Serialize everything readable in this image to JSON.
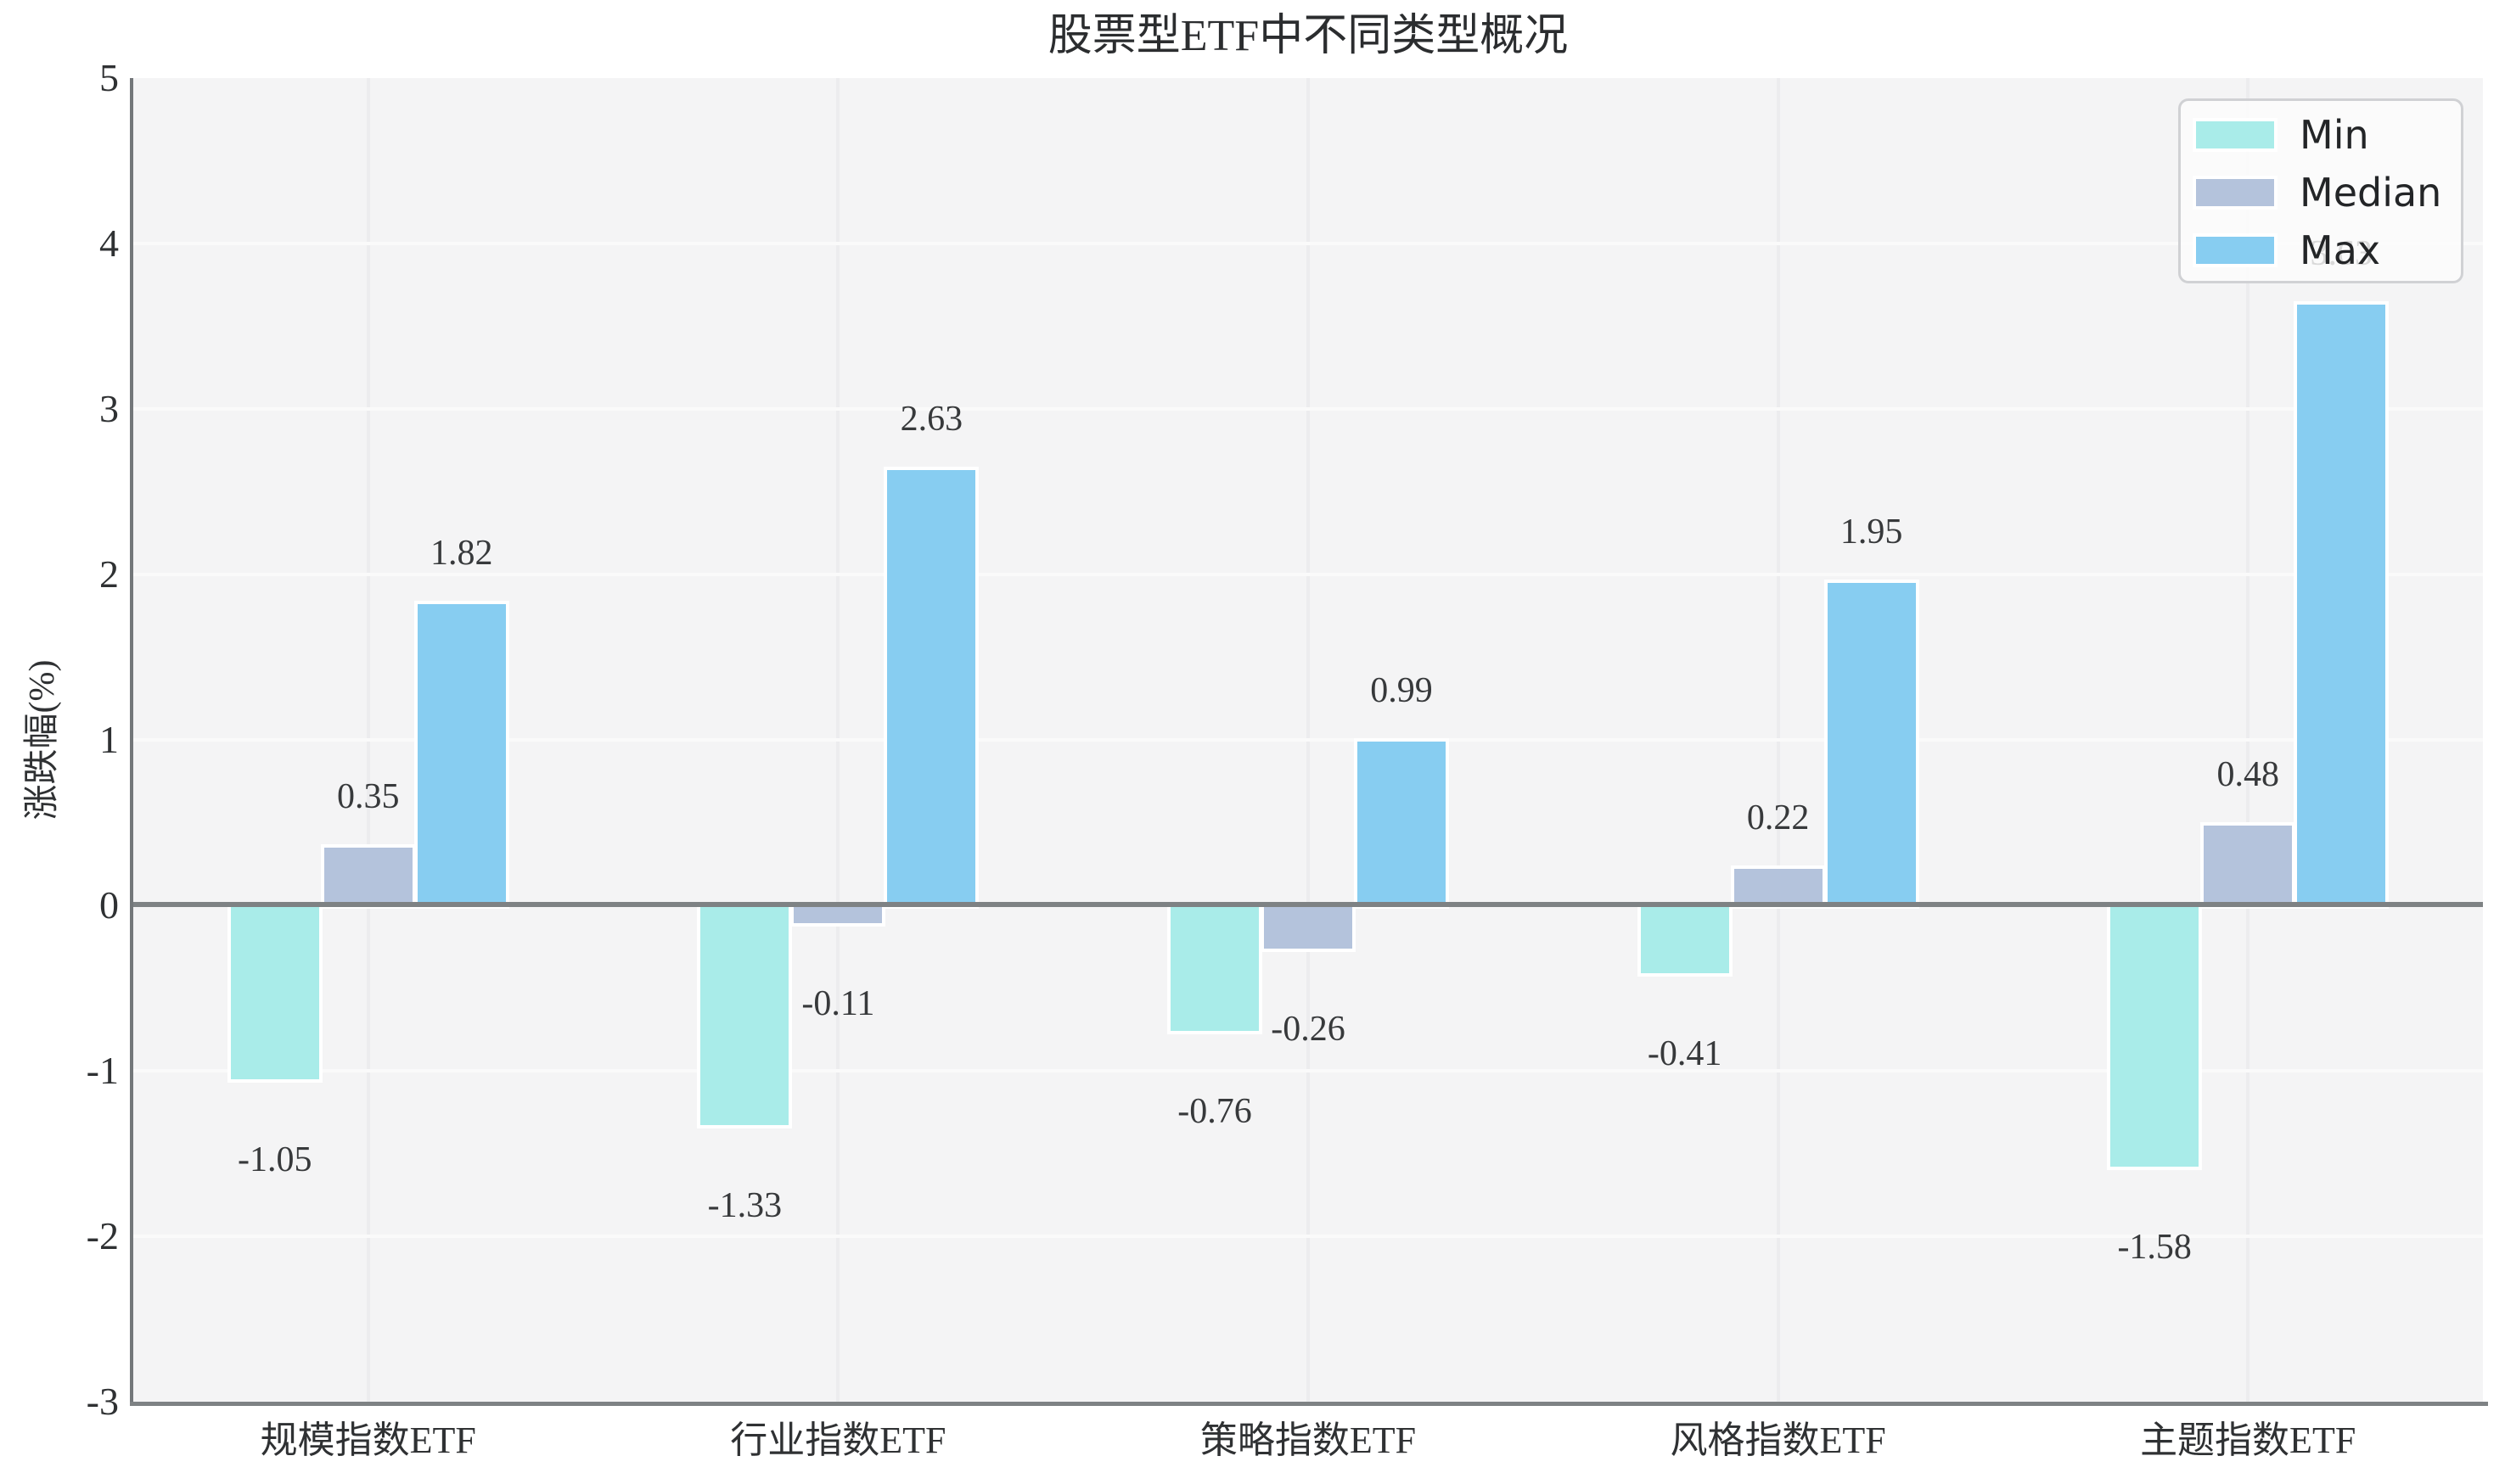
{
  "chart_data": {
    "type": "bar",
    "title": "股票型ETF中不同类型概况",
    "xlabel": "",
    "ylabel": "涨跌幅(%)",
    "categories": [
      "规模指数ETF",
      "行业指数ETF",
      "策略指数ETF",
      "风格指数ETF",
      "主题指数ETF"
    ],
    "series": [
      {
        "name": "Min",
        "color": "#a9ece9",
        "values": [
          -1.05,
          -1.33,
          -0.76,
          -0.41,
          -1.58
        ]
      },
      {
        "name": "Median",
        "color": "#b4c3dc",
        "values": [
          0.35,
          -0.11,
          -0.26,
          0.22,
          0.48
        ]
      },
      {
        "name": "Max",
        "color": "#87cdf1",
        "values": [
          1.82,
          2.63,
          0.99,
          1.95,
          3.63
        ]
      }
    ],
    "ylim": [
      -3,
      5
    ],
    "yticks": [
      5,
      4,
      3,
      2,
      1,
      0,
      -1,
      -2,
      -3
    ],
    "grid": true,
    "legend_position": "upper right",
    "bar_value_labels": true,
    "value_label_decimals": 2
  },
  "colors": {
    "plot_background": "#f4f4f5",
    "page_background": "#ffffff",
    "horizontal_grid": "#fafafa",
    "vertical_grid": "#ececee",
    "zero_line": "#7e8284",
    "spine": "#73777a",
    "text": "#2f3133"
  }
}
